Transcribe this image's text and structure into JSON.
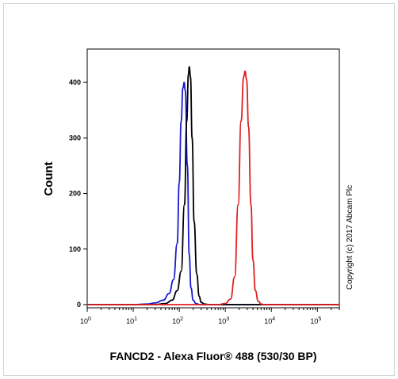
{
  "chart_data": {
    "type": "line",
    "xlabel": "FANCD2 - Alexa Fluor® 488 (530/30 BP)",
    "ylabel": "Count",
    "x_scale": "log",
    "xlim": [
      1,
      300000
    ],
    "ylim": [
      0,
      440
    ],
    "y_ticks": [
      {
        "value": 0,
        "label": "0"
      },
      {
        "value": 100,
        "label": "100"
      },
      {
        "value": 200,
        "label": "200"
      },
      {
        "value": 300,
        "label": "300"
      },
      {
        "value": 400,
        "label": "400"
      }
    ],
    "x_ticks": [
      {
        "value": 1,
        "base": "10",
        "exp": "0"
      },
      {
        "value": 10,
        "base": "10",
        "exp": "1"
      },
      {
        "value": 100,
        "base": "10",
        "exp": "2"
      },
      {
        "value": 1000,
        "base": "10",
        "exp": "3"
      },
      {
        "value": 10000,
        "base": "10",
        "exp": "4"
      },
      {
        "value": 100000,
        "base": "10",
        "exp": "5"
      }
    ],
    "series": [
      {
        "color": "#1a1acc",
        "points": [
          [
            1,
            0
          ],
          [
            10,
            0
          ],
          [
            20,
            1
          ],
          [
            30,
            3
          ],
          [
            45,
            8
          ],
          [
            60,
            20
          ],
          [
            75,
            45
          ],
          [
            90,
            110
          ],
          [
            100,
            220
          ],
          [
            110,
            330
          ],
          [
            120,
            390
          ],
          [
            128,
            400
          ],
          [
            135,
            385
          ],
          [
            150,
            250
          ],
          [
            165,
            90
          ],
          [
            180,
            30
          ],
          [
            200,
            8
          ],
          [
            230,
            2
          ],
          [
            280,
            0
          ],
          [
            300000,
            0
          ]
        ]
      },
      {
        "color": "#000000",
        "points": [
          [
            1,
            0
          ],
          [
            10,
            0
          ],
          [
            30,
            0
          ],
          [
            50,
            2
          ],
          [
            70,
            8
          ],
          [
            90,
            25
          ],
          [
            110,
            60
          ],
          [
            130,
            180
          ],
          [
            145,
            330
          ],
          [
            158,
            415
          ],
          [
            165,
            428
          ],
          [
            175,
            410
          ],
          [
            190,
            300
          ],
          [
            210,
            150
          ],
          [
            240,
            55
          ],
          [
            270,
            15
          ],
          [
            300,
            4
          ],
          [
            350,
            1
          ],
          [
            450,
            0
          ],
          [
            300000,
            0
          ]
        ]
      },
      {
        "color": "#dd2222",
        "points": [
          [
            1,
            0
          ],
          [
            10,
            0
          ],
          [
            700,
            0
          ],
          [
            1000,
            2
          ],
          [
            1300,
            10
          ],
          [
            1600,
            50
          ],
          [
            1900,
            180
          ],
          [
            2200,
            330
          ],
          [
            2500,
            410
          ],
          [
            2700,
            420
          ],
          [
            2900,
            405
          ],
          [
            3200,
            320
          ],
          [
            3600,
            180
          ],
          [
            4000,
            80
          ],
          [
            4500,
            25
          ],
          [
            5200,
            6
          ],
          [
            6000,
            1
          ],
          [
            7000,
            0
          ],
          [
            300000,
            0
          ]
        ]
      }
    ]
  },
  "copyright": "Copyright (c) 2017 Abcam Plc"
}
